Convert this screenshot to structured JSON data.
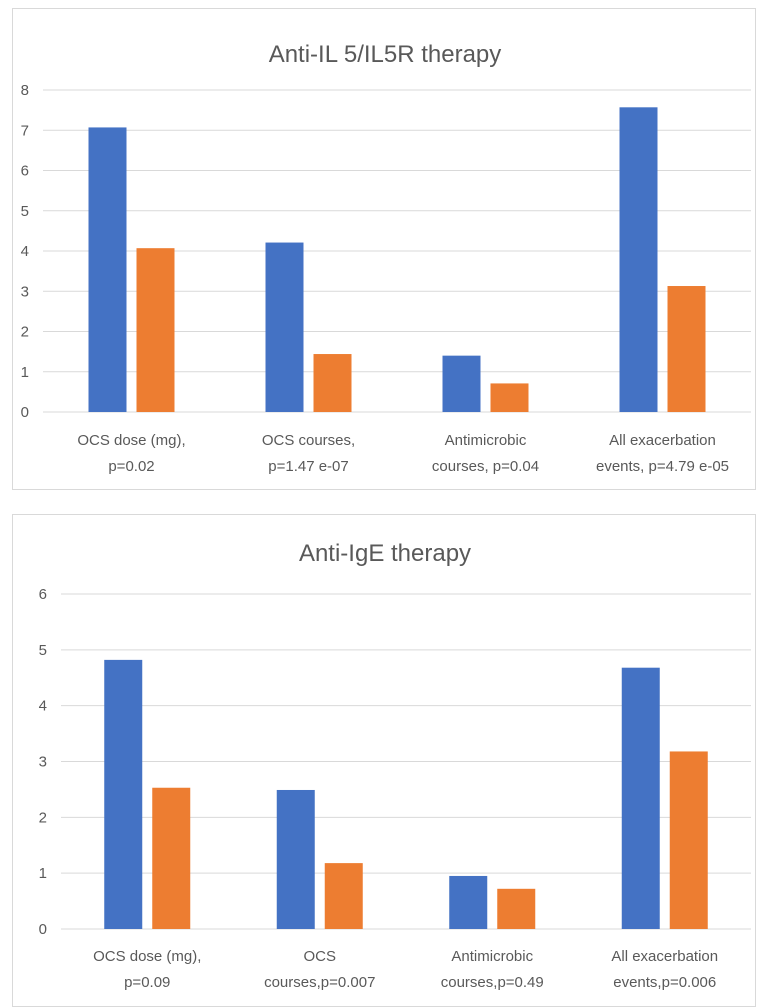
{
  "chart_data": [
    {
      "type": "bar",
      "title": "Anti-IL 5/IL5R therapy",
      "xlabel": "",
      "ylabel": "",
      "ylim": [
        0,
        8
      ],
      "yticks": [
        0,
        1,
        2,
        3,
        4,
        5,
        6,
        7,
        8
      ],
      "grid": true,
      "legend": "none",
      "categories": [
        [
          "OCS dose (mg),",
          "p=0.02"
        ],
        [
          "OCS courses,",
          "p=1.47 e-07"
        ],
        [
          "Antimicrobic",
          "courses, p=0.04"
        ],
        [
          "All exacerbation",
          "events, p=4.79 e-05"
        ]
      ],
      "series": [
        {
          "color": "#4472C4",
          "values": [
            7.07,
            4.21,
            1.4,
            7.57
          ]
        },
        {
          "color": "#ED7D31",
          "values": [
            4.07,
            1.44,
            0.71,
            3.13
          ]
        }
      ]
    },
    {
      "type": "bar",
      "title": "Anti-IgE therapy",
      "xlabel": "",
      "ylabel": "",
      "ylim": [
        0,
        6
      ],
      "yticks": [
        0,
        1,
        2,
        3,
        4,
        5,
        6
      ],
      "grid": true,
      "legend": "none",
      "categories": [
        [
          "OCS dose (mg),",
          "p=0.09"
        ],
        [
          "OCS",
          "courses,p=0.007"
        ],
        [
          "Antimicrobic",
          "courses,p=0.49"
        ],
        [
          "All exacerbation",
          "events,p=0.006"
        ]
      ],
      "series": [
        {
          "color": "#4472C4",
          "values": [
            4.82,
            2.49,
            0.95,
            4.68
          ]
        },
        {
          "color": "#ED7D31",
          "values": [
            2.53,
            1.18,
            0.72,
            3.18
          ]
        }
      ]
    }
  ]
}
